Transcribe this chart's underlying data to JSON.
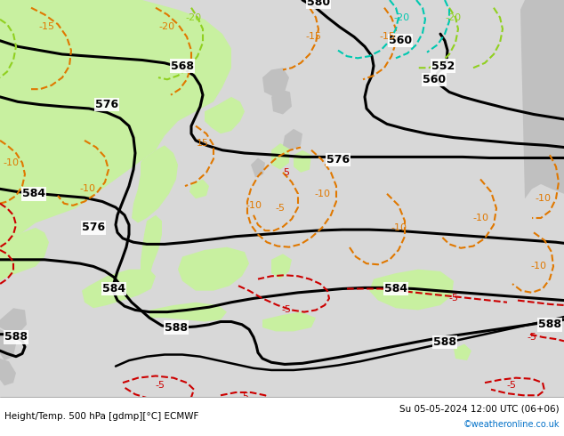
{
  "title_left": "Height/Temp. 500 hPa [gdmp][°C] ECMWF",
  "title_right": "Su 05-05-2024 12:00 UTC (06+06)",
  "credit": "©weatheronline.co.uk",
  "bg_color": "#d8d8d8",
  "land_green": "#c8f0a0",
  "land_gray": "#c0c0c0",
  "sea_color": "#e0e0e0",
  "c_black": "#000000",
  "c_orange": "#e07800",
  "c_red": "#cc0000",
  "c_green_lt": "#90d020",
  "c_cyan": "#00c8b0",
  "fig_w": 6.34,
  "fig_h": 4.9,
  "dpi": 100
}
